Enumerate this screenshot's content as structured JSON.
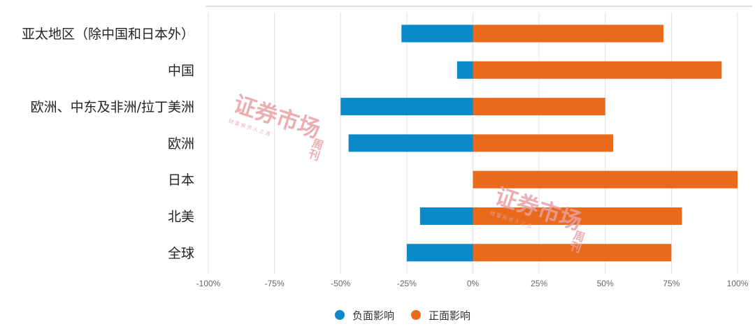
{
  "chart_data": {
    "type": "bar",
    "orientation": "horizontal",
    "stacked": "diverging",
    "categories": [
      "亚太地区（除中国和日本外）",
      "中国",
      "欧洲、中东及非洲/拉丁美洲",
      "欧洲",
      "日本",
      "北美",
      "全球"
    ],
    "series": [
      {
        "name": "负面影响",
        "color": "#0a8ac9",
        "values": [
          -27,
          -6,
          -50,
          -47,
          0,
          -20,
          -25
        ]
      },
      {
        "name": "正面影响",
        "color": "#ea6a1c",
        "values": [
          72,
          94,
          50,
          53,
          100,
          79,
          75
        ]
      }
    ],
    "xlim": [
      -100,
      100
    ],
    "ticks": [
      -100,
      -75,
      -50,
      -25,
      0,
      25,
      50,
      75,
      100
    ],
    "tick_labels": [
      "-100%",
      "-75%",
      "-50%",
      "-25%",
      "0%",
      "25%",
      "50%",
      "75%",
      "100%"
    ],
    "grid": true,
    "legend_position": "bottom-center"
  },
  "watermark": {
    "title": "证券市场",
    "sub": "周刊",
    "tagline": "财 富 投 资 人 之 选",
    "color": "#e8a0a6"
  }
}
